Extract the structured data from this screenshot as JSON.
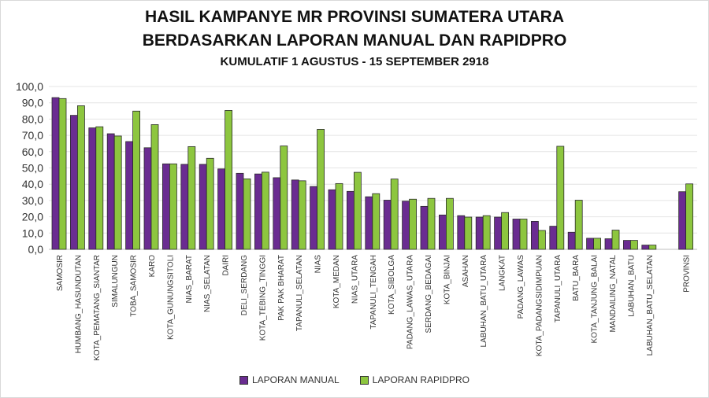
{
  "title": "HASIL KAMPANYE MR PROVINSI SUMATERA UTARA",
  "subtitle": "BERDASARKAN LAPORAN MANUAL DAN RAPIDPRO",
  "period": "KUMULATIF 1 AGUSTUS - 15 SEPTEMBER 2918",
  "chart_data": {
    "type": "bar",
    "title": "HASIL KAMPANYE MR PROVINSI SUMATERA UTARA",
    "xlabel": "",
    "ylabel": "",
    "ylim": [
      0,
      100
    ],
    "yticks": [
      "0,0",
      "10,0",
      "20,0",
      "30,0",
      "40,0",
      "50,0",
      "60,0",
      "70,0",
      "80,0",
      "90,0",
      "100,0"
    ],
    "grid": true,
    "legend": "bottom",
    "categories": [
      "SAMOSIR",
      "HUMBANG_HASUNDUTAN",
      "KOTA_PEMATANG_SIANTAR",
      "SIMALUNGUN",
      "TOBA_SAMOSIR",
      "KARO",
      "KOTA_GUNUNGSITOLI",
      "NIAS_BARAT",
      "NIAS_SELATAN",
      "DAIRI",
      "DELI_SERDANG",
      "KOTA_TEBING_TINGGI",
      "PAK PAK BHARAT",
      "TAPANULI_SELATAN",
      "NIAS",
      "KOTA_MEDAN",
      "NIAS_UTARA",
      "TAPANULI_TENGAH",
      "KOTA_SIBOLGA",
      "PADANG_LAWAS_UTARA",
      "SERDANG_BEDAGAI",
      "KOTA_BINJAI",
      "ASAHAN",
      "LABUHAN_BATU_UTARA",
      "LANGKAT",
      "PADANG_LAWAS",
      "KOTA_PADANGSIDIMPUAN",
      "TAPANULI_UTARA",
      "BATU_BARA",
      "KOTA_TANJUNG_BALAI",
      "MANDAILING_NATAL",
      "LABUHAN_BATU",
      "LABUHAN_BATU_SELATAN",
      "PROVINSI"
    ],
    "series": [
      {
        "name": "LAPORAN MANUAL",
        "color": "#6a2c91",
        "values": [
          93.2,
          82.3,
          74.6,
          71.0,
          66.2,
          62.4,
          52.5,
          52.2,
          52.2,
          49.4,
          46.7,
          46.3,
          44.0,
          42.6,
          38.6,
          36.6,
          35.6,
          32.3,
          30.2,
          29.6,
          26.4,
          21.1,
          20.7,
          19.8,
          19.8,
          18.6,
          17.2,
          14.2,
          10.5,
          6.8,
          6.5,
          5.5,
          2.6,
          35.4
        ]
      },
      {
        "name": "LAPORAN RAPIDPRO",
        "color": "#8dc63f",
        "values": [
          92.6,
          88.2,
          75.3,
          69.6,
          84.9,
          76.6,
          52.5,
          63.1,
          55.9,
          85.3,
          43.3,
          47.4,
          63.5,
          42.1,
          73.7,
          40.4,
          47.3,
          34.2,
          43.2,
          30.8,
          31.3,
          31.3,
          19.8,
          20.7,
          22.6,
          18.6,
          11.6,
          63.3,
          30.2,
          6.8,
          11.8,
          5.5,
          2.6,
          40.2
        ]
      }
    ]
  }
}
